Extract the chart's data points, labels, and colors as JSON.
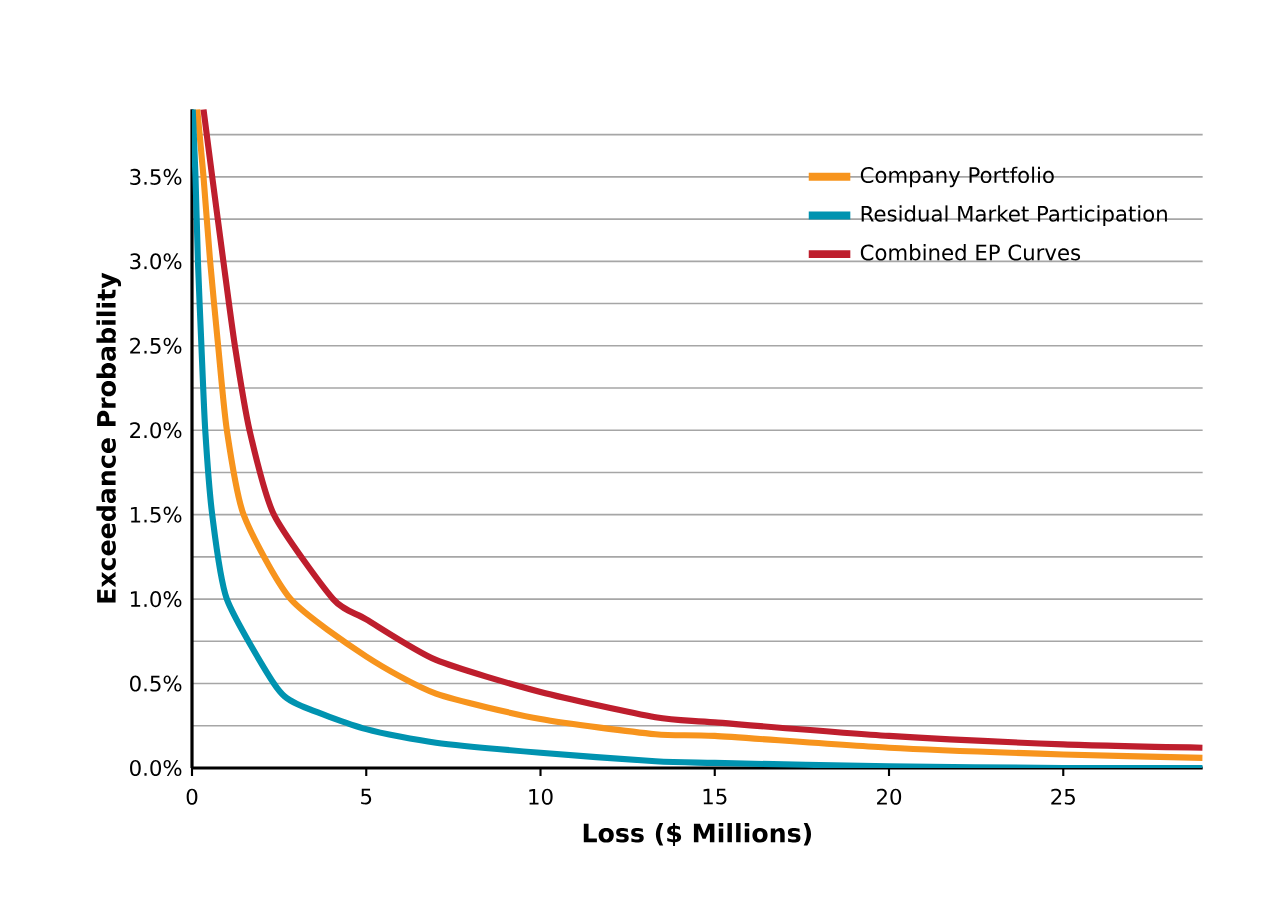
{
  "chart_data": {
    "type": "line",
    "xlabel": "Loss ($ Millions)",
    "ylabel": "Exceedance Probability",
    "xlim": [
      0,
      29
    ],
    "ylim": [
      0,
      3.9
    ],
    "xticks": [
      0,
      5,
      10,
      15,
      20,
      25
    ],
    "yticks": [
      {
        "value": 0,
        "label": "0.0%"
      },
      {
        "value": 0.25,
        "label": null
      },
      {
        "value": 0.5,
        "label": "0.5%"
      },
      {
        "value": 0.75,
        "label": null
      },
      {
        "value": 1.0,
        "label": "1.0%"
      },
      {
        "value": 1.25,
        "label": null
      },
      {
        "value": 1.5,
        "label": "1.5%"
      },
      {
        "value": 1.75,
        "label": null
      },
      {
        "value": 2.0,
        "label": "2.0%"
      },
      {
        "value": 2.25,
        "label": null
      },
      {
        "value": 2.5,
        "label": "2.5%"
      },
      {
        "value": 2.75,
        "label": null
      },
      {
        "value": 3.0,
        "label": "3.0%"
      },
      {
        "value": 3.25,
        "label": null
      },
      {
        "value": 3.5,
        "label": "3.5%"
      },
      {
        "value": 3.75,
        "label": null
      }
    ],
    "grid": "y",
    "legend": "top right",
    "marker": "none",
    "line_style": "solid",
    "series": [
      {
        "name": "Company Portfolio",
        "color": "#f7941d",
        "x": [
          0.15,
          0.33,
          0.52,
          0.75,
          1.0,
          1.48,
          2.83,
          5,
          7,
          10,
          13.3,
          15,
          20,
          25,
          29
        ],
        "values": [
          3.9,
          3.5,
          3.0,
          2.5,
          2.0,
          1.5,
          1.0,
          0.66,
          0.44,
          0.29,
          0.2,
          0.19,
          0.12,
          0.08,
          0.06
        ]
      },
      {
        "name": "Residual Market Participation",
        "color": "#0093b0",
        "x": [
          0.02,
          0.1,
          0.17,
          0.27,
          0.38,
          0.58,
          1.0,
          2.35,
          3,
          5,
          7,
          10,
          13.3,
          15,
          20,
          25,
          29
        ],
        "values": [
          3.9,
          3.5,
          3.0,
          2.5,
          2.0,
          1.5,
          1.0,
          0.5,
          0.38,
          0.23,
          0.15,
          0.09,
          0.04,
          0.03,
          0.01,
          0.0,
          0.0
        ]
      },
      {
        "name": "Combined EP Curves",
        "color": "#be1e2d",
        "x": [
          0.33,
          0.58,
          0.9,
          1.23,
          1.65,
          2.35,
          4.05,
          5,
          7,
          10,
          13.3,
          15,
          20,
          25,
          29
        ],
        "values": [
          3.9,
          3.5,
          3.0,
          2.5,
          2.0,
          1.5,
          1.0,
          0.88,
          0.64,
          0.45,
          0.3,
          0.27,
          0.19,
          0.14,
          0.12
        ]
      }
    ]
  }
}
